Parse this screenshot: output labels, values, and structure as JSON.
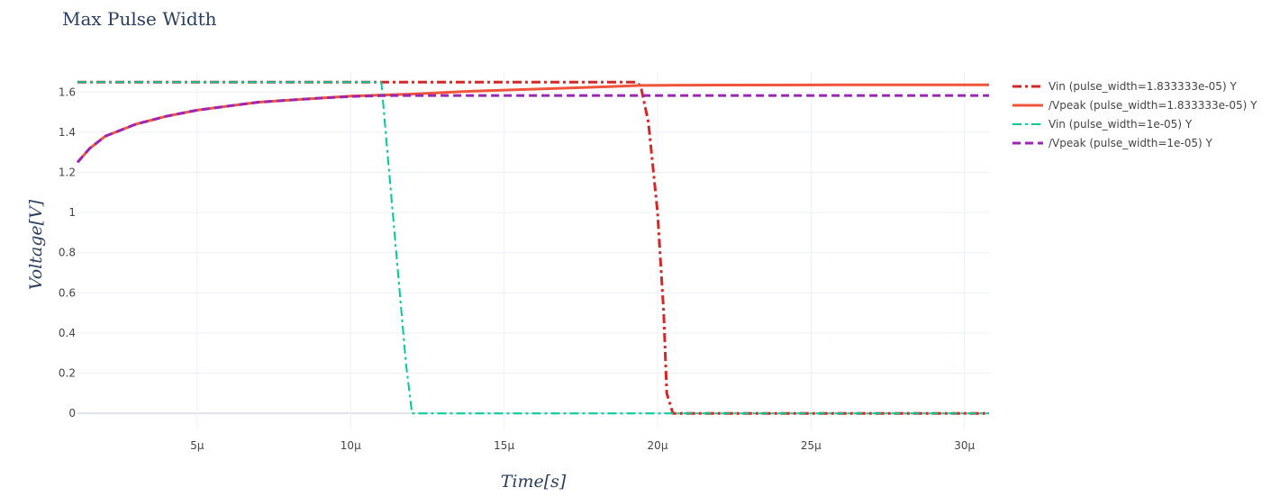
{
  "chart_data": {
    "type": "line",
    "title": "Max Pulse Width",
    "xlabel": "Time[s]",
    "ylabel": "Voltage[V]",
    "xlim": [
      1.1e-06,
      3.08e-05
    ],
    "ylim": [
      -0.08,
      1.7
    ],
    "x_ticks": [
      {
        "value": 5e-06,
        "label": "5μ"
      },
      {
        "value": 1e-05,
        "label": "10μ"
      },
      {
        "value": 1.5e-05,
        "label": "15μ"
      },
      {
        "value": 2e-05,
        "label": "20μ"
      },
      {
        "value": 2.5e-05,
        "label": "25μ"
      },
      {
        "value": 3e-05,
        "label": "30μ"
      }
    ],
    "y_ticks": [
      {
        "value": 0,
        "label": "0"
      },
      {
        "value": 0.2,
        "label": "0.2"
      },
      {
        "value": 0.4,
        "label": "0.4"
      },
      {
        "value": 0.6,
        "label": "0.6"
      },
      {
        "value": 0.8,
        "label": "0.8"
      },
      {
        "value": 1,
        "label": "1"
      },
      {
        "value": 1.2,
        "label": "1.2"
      },
      {
        "value": 1.4,
        "label": "1.4"
      },
      {
        "value": 1.6,
        "label": "1.6"
      }
    ],
    "grid": true,
    "legend_position": "right",
    "series": [
      {
        "name": "Vin (pulse_width=1.833333e-05) Y",
        "color": "#d62728",
        "dash": "dashdot",
        "x": [
          1.1e-06,
          1.93e-05,
          1.945e-05,
          1.97e-05,
          2e-05,
          2.02e-05,
          2.03e-05,
          2.05e-05,
          3.08e-05
        ],
        "y": [
          1.65,
          1.65,
          1.63,
          1.45,
          1.0,
          0.5,
          0.1,
          0.0,
          0.0
        ]
      },
      {
        "name": "/Vpeak (pulse_width=1.833333e-05) Y",
        "color": "#ef553b",
        "dash": "solid",
        "x": [
          1.1e-06,
          1.5e-06,
          2e-06,
          3e-06,
          4e-06,
          5e-06,
          6e-06,
          7e-06,
          8e-06,
          9e-06,
          1e-05,
          1.1e-05,
          1.2e-05,
          1.4e-05,
          1.6e-05,
          1.8e-05,
          1.95e-05,
          2.2e-05,
          2.6e-05,
          3.08e-05
        ],
        "y": [
          1.25,
          1.32,
          1.38,
          1.44,
          1.48,
          1.51,
          1.53,
          1.55,
          1.56,
          1.57,
          1.58,
          1.585,
          1.59,
          1.605,
          1.615,
          1.625,
          1.633,
          1.635,
          1.636,
          1.636
        ]
      },
      {
        "name": "Vin (pulse_width=1e-05) Y",
        "color": "#00cc96",
        "dash": "dashdot",
        "x": [
          1.1e-06,
          1.1e-05,
          1.12e-05,
          1.16e-05,
          1.18e-05,
          1.2e-05,
          3.08e-05
        ],
        "y": [
          1.65,
          1.65,
          1.3,
          0.6,
          0.25,
          0.0,
          0.0
        ]
      },
      {
        "name": "/Vpeak (pulse_width=1e-05) Y",
        "color": "#9b26b6",
        "dash": "dash",
        "x": [
          1.1e-06,
          1.5e-06,
          2e-06,
          3e-06,
          4e-06,
          5e-06,
          6e-06,
          7e-06,
          8e-06,
          9e-06,
          1e-05,
          1.1e-05,
          1.15e-05,
          3.08e-05
        ],
        "y": [
          1.25,
          1.32,
          1.38,
          1.44,
          1.48,
          1.51,
          1.53,
          1.55,
          1.56,
          1.57,
          1.578,
          1.582,
          1.583,
          1.583
        ]
      }
    ]
  }
}
